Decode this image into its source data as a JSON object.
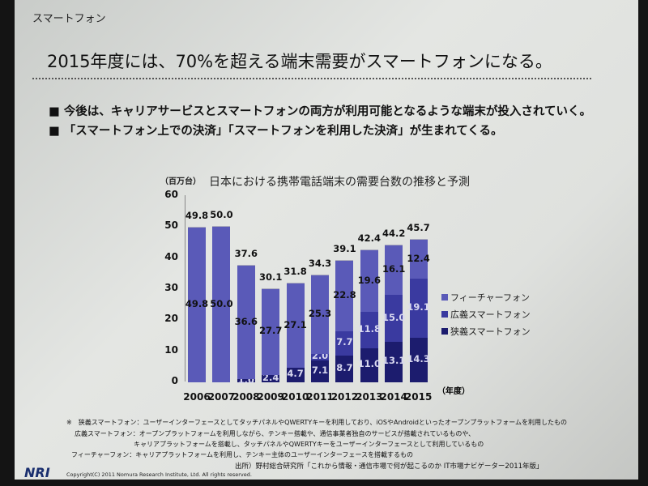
{
  "slide": {
    "section": "スマートフォン",
    "headline": "2015年度には、70%を超える端末需要がスマートフォンになる。",
    "bullets": [
      "今後は、キャリアサービスとスマートフォンの両方が利用可能となるような端末が投入されていく。",
      "「スマートフォン上での決済」「スマートフォンを利用した決済」が生まれてくる。"
    ],
    "notes": [
      "※　狭義スマートフォン：ユーザーインターフェースとしてタッチパネルやQWERTYキーを利用しており、iOSやAndroidといったオープンプラットフォームを利用したもの",
      "広義スマートフォン：オープンプラットフォームを利用しながら、テンキー搭載や、通信事業者独自のサービスが搭載されているものや、",
      "キャリアプラットフォームを搭載し、タッチパネルやQWERTYキーをユーザーインターフェースとして利用しているもの",
      "フィーチャーフォン：キャリアプラットフォームを利用し、テンキー主体のユーザーインターフェースを搭載するもの"
    ],
    "source": "出所）野村総合研究所「これから情報・通信市場で何が起こるのか IT市場ナビゲーター2011年版」",
    "logo": "NRI",
    "copyright": "Copyright(C) 2011 Nomura Research Institute, Ltd. All rights reserved."
  },
  "chart_data": {
    "type": "bar",
    "stacked": true,
    "title": "日本における携帯電話端末の需要台数の推移と予測",
    "ylabel": "（百万台）",
    "xlabel": "（年度）",
    "ylim": [
      0,
      60
    ],
    "yticks": [
      "0",
      "10",
      "20",
      "30",
      "40",
      "50",
      "60"
    ],
    "categories": [
      "2006",
      "2007",
      "2008",
      "2009",
      "2010",
      "2011",
      "2012",
      "2013",
      "2014",
      "2015"
    ],
    "series": [
      {
        "name": "狭義スマートフォン",
        "color": "#1c1c6e",
        "values": [
          0,
          0,
          1.0,
          2.4,
          4.7,
          7.1,
          8.7,
          11.0,
          13.1,
          14.3
        ],
        "labels": [
          "",
          "",
          "1.0",
          "2.4",
          "4.7",
          "7.1",
          "8.7",
          "11.0",
          "13.1",
          "14.3"
        ]
      },
      {
        "name": "広義スマートフォン",
        "color": "#3a3aa0",
        "values": [
          0,
          0,
          0.0,
          0.0,
          0.0,
          2.0,
          7.7,
          11.8,
          15.0,
          19.1
        ],
        "labels": [
          "",
          "",
          "0.0",
          "0.0",
          "0.0",
          "2.0",
          "7.7",
          "11.8",
          "15.0",
          "19.1"
        ]
      },
      {
        "name": "フィーチャーフォン",
        "color": "#5a5ab8",
        "values": [
          49.8,
          50.0,
          36.6,
          27.7,
          27.1,
          25.3,
          22.8,
          19.6,
          16.1,
          12.4
        ],
        "labels": [
          "49.8",
          "50.0",
          "36.6",
          "27.7",
          "27.1",
          "25.3",
          "22.8",
          "19.6",
          "16.1",
          "12.4"
        ]
      }
    ],
    "totals": [
      "49.8",
      "50.0",
      "37.6",
      "30.1",
      "31.8",
      "34.3",
      "39.1",
      "42.4",
      "44.2",
      "45.7"
    ],
    "legend": "right"
  }
}
